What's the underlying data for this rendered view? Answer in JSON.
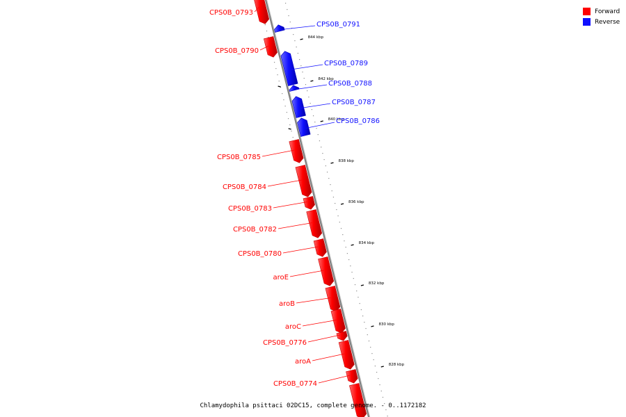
{
  "legend": {
    "forward_label": "Forward",
    "reverse_label": "Reverse"
  },
  "colors": {
    "forward": "#ff0000",
    "reverse": "#1010ff",
    "backbone": "#808080",
    "tick": "#000000"
  },
  "caption": "Chlamydophila psittaci 02DC15, complete genome. - 0..1172182",
  "ticks": [
    {
      "label": "844 kbp"
    },
    {
      "label": "842 kbp"
    },
    {
      "label": "840 kbp"
    },
    {
      "label": "838 kbp"
    },
    {
      "label": "836 kbp"
    },
    {
      "label": "834 kbp"
    },
    {
      "label": "832 kbp"
    },
    {
      "label": "830 kbp"
    },
    {
      "label": "828 kbp"
    }
  ],
  "genes": [
    {
      "name": "CPS0B_0793",
      "strand": "forward"
    },
    {
      "name": "CPS0B_0791",
      "strand": "reverse"
    },
    {
      "name": "CPS0B_0790",
      "strand": "forward"
    },
    {
      "name": "CPS0B_0789",
      "strand": "reverse"
    },
    {
      "name": "CPS0B_0788",
      "strand": "reverse"
    },
    {
      "name": "CPS0B_0787",
      "strand": "reverse"
    },
    {
      "name": "CPS0B_0786",
      "strand": "reverse"
    },
    {
      "name": "CPS0B_0785",
      "strand": "forward"
    },
    {
      "name": "CPS0B_0784",
      "strand": "forward"
    },
    {
      "name": "CPS0B_0783",
      "strand": "forward"
    },
    {
      "name": "CPS0B_0782",
      "strand": "forward"
    },
    {
      "name": "CPS0B_0780",
      "strand": "forward"
    },
    {
      "name": "aroE",
      "strand": "forward"
    },
    {
      "name": "aroB",
      "strand": "forward"
    },
    {
      "name": "aroC",
      "strand": "forward"
    },
    {
      "name": "CPS0B_0776",
      "strand": "forward"
    },
    {
      "name": "aroA",
      "strand": "forward"
    },
    {
      "name": "CPS0B_0774",
      "strand": "forward"
    },
    {
      "name": "",
      "strand": "forward"
    }
  ]
}
